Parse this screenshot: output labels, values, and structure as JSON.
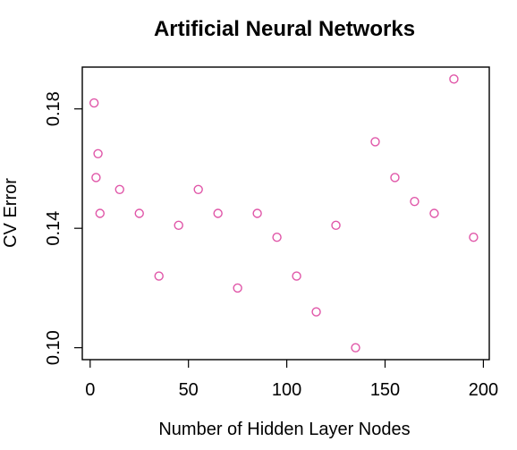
{
  "chart_data": {
    "type": "scatter",
    "title": "Artificial Neural Networks",
    "xlabel": "Number of Hidden Layer Nodes",
    "ylabel": "CV Error",
    "xlim": [
      -4,
      203
    ],
    "ylim": [
      0.096,
      0.194
    ],
    "x_ticks": [
      0,
      50,
      100,
      150,
      200
    ],
    "x_tick_labels": [
      "0",
      "50",
      "100",
      "150",
      "200"
    ],
    "y_ticks": [
      0.1,
      0.14,
      0.18
    ],
    "y_tick_labels": [
      "0.10",
      "0.14",
      "0.18"
    ],
    "grid": false,
    "legend": "none",
    "marker": "open-circle",
    "point_color": "#e056a8",
    "series": [
      {
        "x": [
          2,
          3,
          4,
          5,
          15,
          25,
          35,
          45,
          55,
          65,
          75,
          85,
          95,
          105,
          115,
          125,
          135,
          145,
          155,
          165,
          175,
          185,
          195
        ],
        "y": [
          0.182,
          0.157,
          0.165,
          0.145,
          0.153,
          0.145,
          0.124,
          0.141,
          0.153,
          0.145,
          0.12,
          0.145,
          0.137,
          0.124,
          0.112,
          0.141,
          0.1,
          0.169,
          0.157,
          0.149,
          0.145,
          0.19,
          0.137
        ]
      }
    ]
  }
}
